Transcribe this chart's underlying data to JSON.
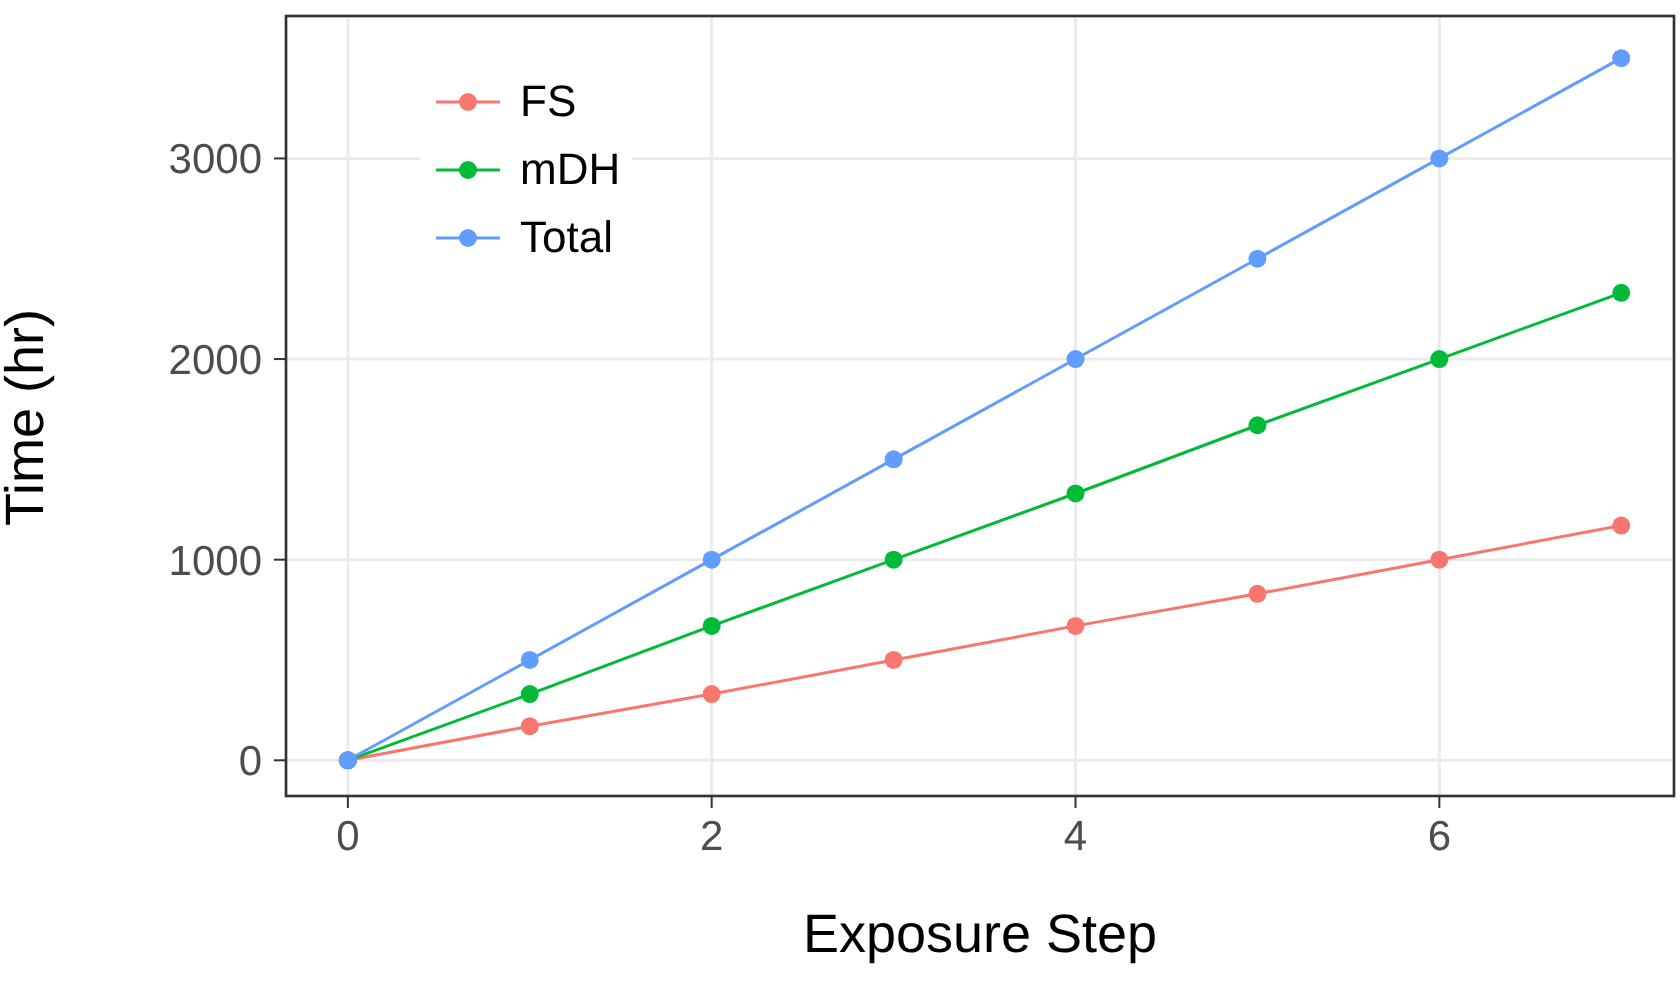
{
  "chart_data": {
    "type": "line",
    "xlabel": "Exposure Step",
    "ylabel": "Time (hr)",
    "x": [
      0,
      1,
      2,
      3,
      4,
      5,
      6,
      7
    ],
    "series": [
      {
        "name": "FS",
        "color": "#f8766d",
        "values": [
          0,
          170,
          330,
          500,
          670,
          830,
          1000,
          1170
        ]
      },
      {
        "name": "mDH",
        "color": "#00ba38",
        "values": [
          0,
          330,
          670,
          1000,
          1330,
          1670,
          2000,
          2330
        ]
      },
      {
        "name": "Total",
        "color": "#619cff",
        "values": [
          0,
          500,
          1000,
          1500,
          2000,
          2500,
          3000,
          3500
        ]
      }
    ],
    "xlim": [
      -0.34,
      7.29
    ],
    "xticks": [
      0,
      2,
      4,
      6
    ],
    "ylim": [
      -178,
      3710
    ],
    "yticks": [
      0,
      1000,
      2000,
      3000
    ],
    "grid": true,
    "legend": "top left",
    "marker": "circle",
    "line_style": "solid"
  }
}
